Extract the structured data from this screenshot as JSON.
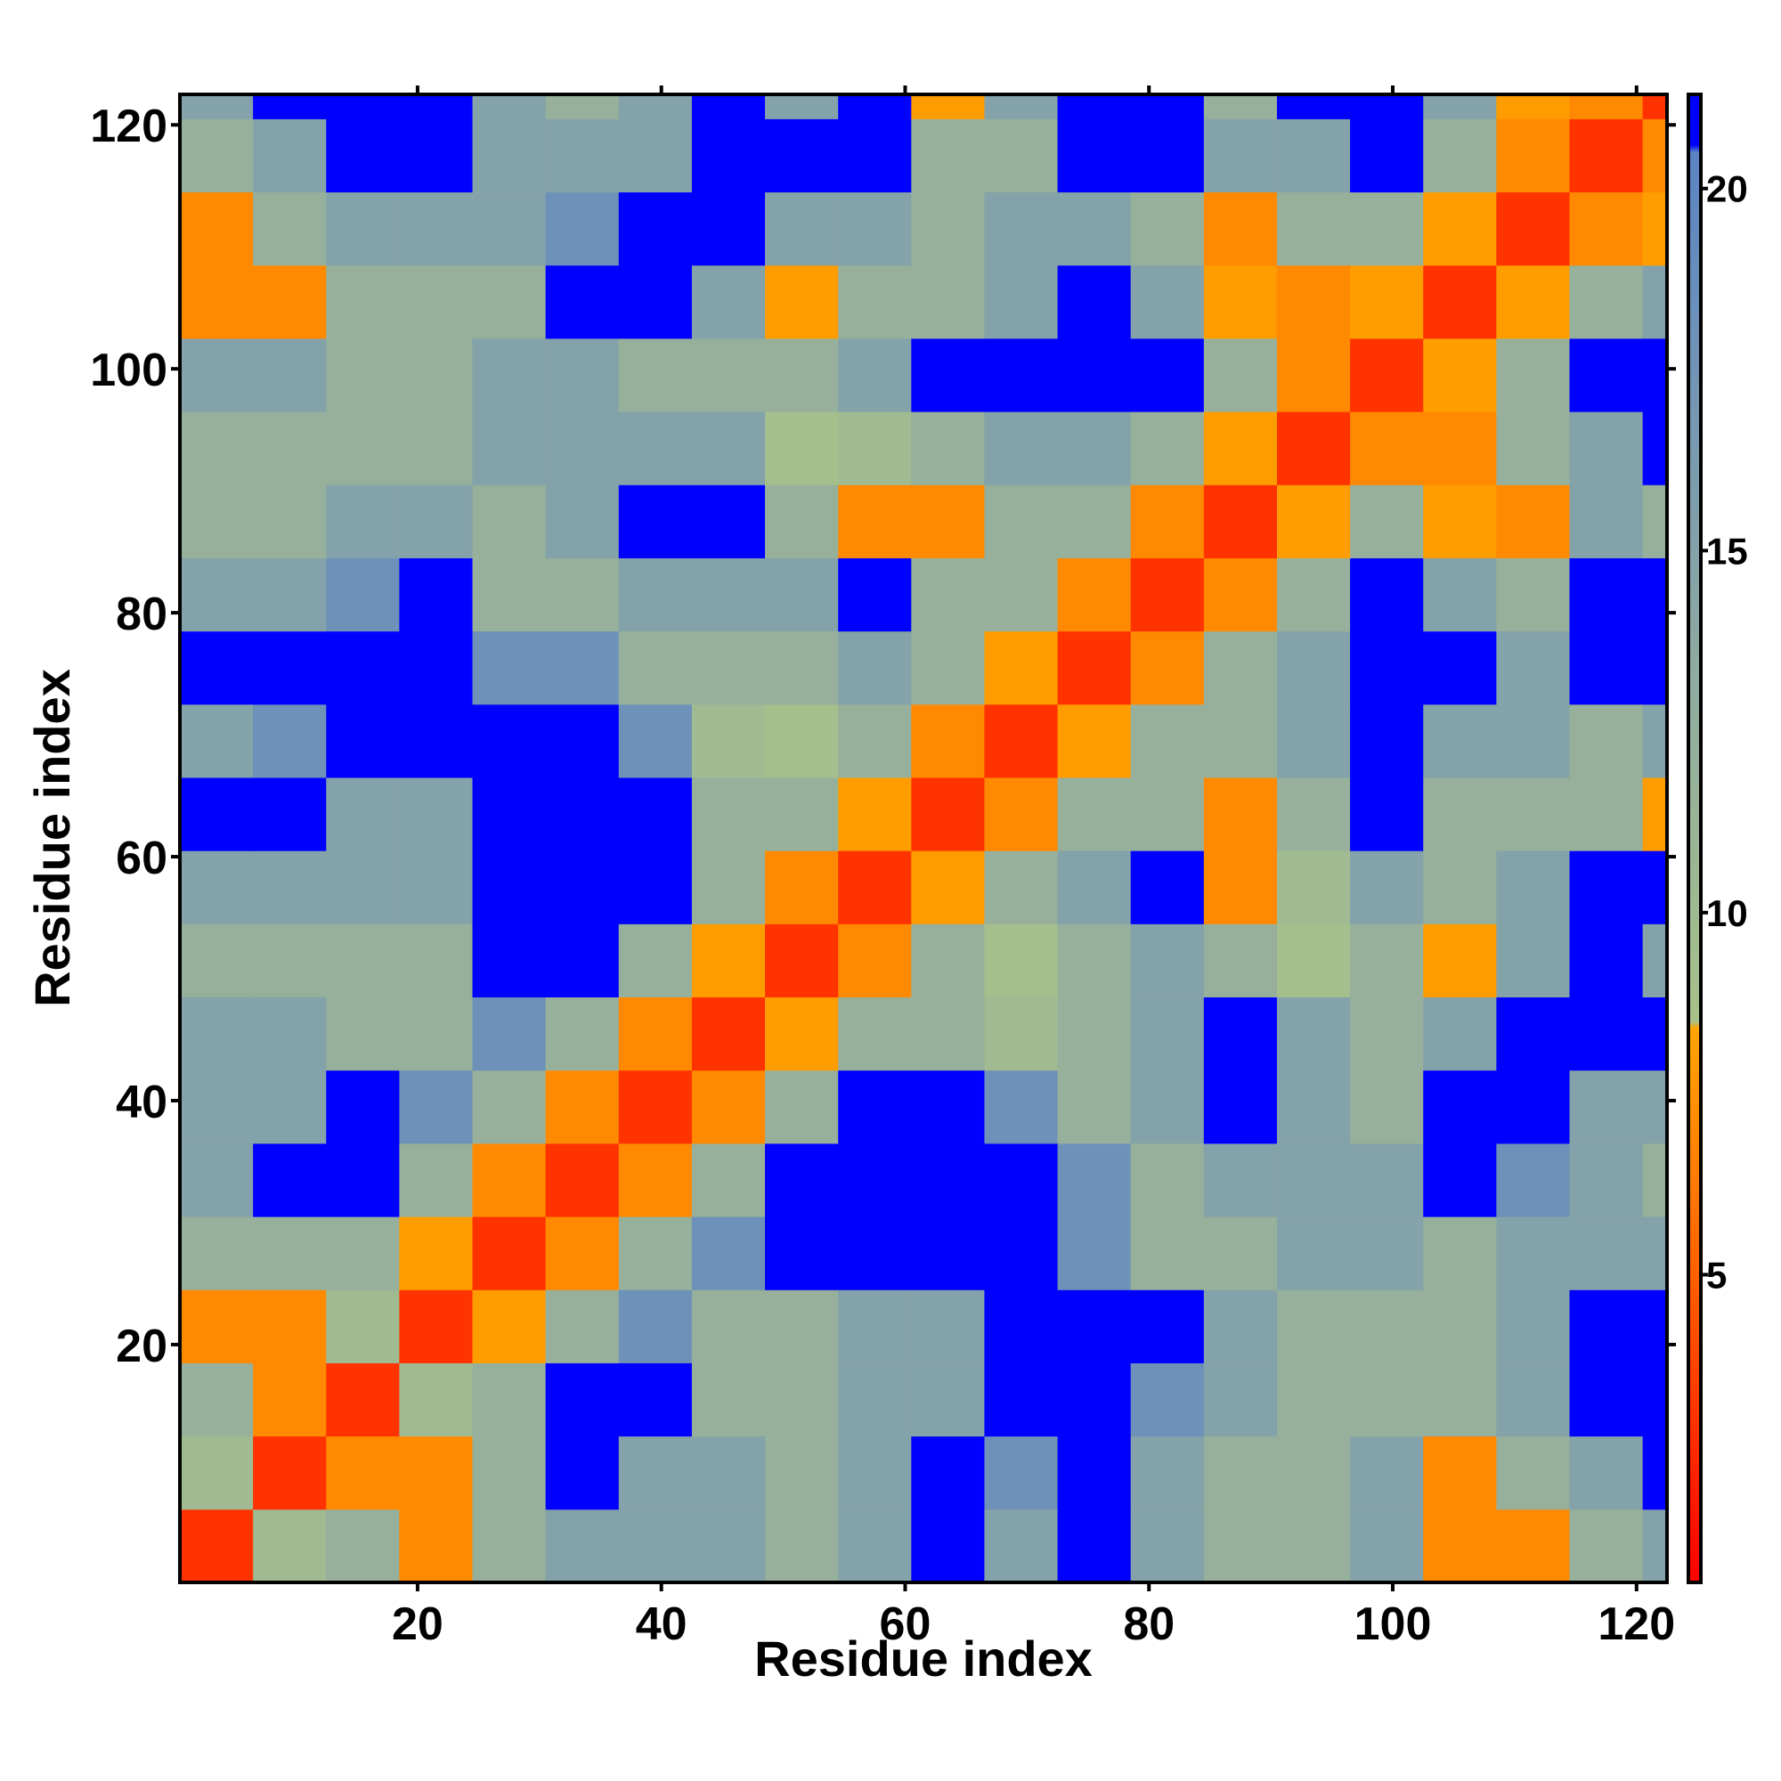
{
  "chart_data": {
    "type": "heatmap",
    "x_label": "Residue index",
    "y_label": "Residue index",
    "x_bins": [
      0.5,
      6.5,
      12.5,
      18.5,
      24.5,
      30.5,
      36.5,
      42.5,
      48.5,
      54.5,
      60.5,
      66.5,
      72.5,
      78.5,
      84.5,
      90.5,
      96.5,
      102.5,
      108.5,
      114.5,
      120.5,
      122.5
    ],
    "y_bins": [
      0.5,
      6.5,
      12.5,
      18.5,
      24.5,
      30.5,
      36.5,
      42.5,
      48.5,
      54.5,
      60.5,
      66.5,
      72.5,
      78.5,
      84.5,
      90.5,
      96.5,
      102.5,
      108.5,
      114.5,
      120.5,
      122.5
    ],
    "z": [
      [
        3,
        10,
        12,
        7,
        12,
        15,
        15,
        15,
        12,
        15,
        21,
        15,
        21,
        15,
        12,
        12,
        15,
        7,
        7,
        12,
        15
      ],
      [
        10,
        3,
        7,
        7,
        12,
        21,
        15,
        15,
        12,
        15,
        21,
        18,
        21,
        15,
        12,
        12,
        15,
        7,
        12,
        15,
        21
      ],
      [
        12,
        7,
        3,
        10,
        12,
        21,
        21,
        12,
        12,
        15,
        15,
        21,
        21,
        18,
        15,
        12,
        12,
        12,
        15,
        21,
        21
      ],
      [
        7,
        7,
        10,
        3,
        8,
        12,
        18,
        12,
        12,
        15,
        15,
        21,
        21,
        21,
        15,
        12,
        12,
        12,
        15,
        21,
        21
      ],
      [
        12,
        12,
        12,
        8,
        3,
        7,
        12,
        18,
        21,
        21,
        21,
        21,
        18,
        12,
        12,
        15,
        15,
        12,
        15,
        15,
        15
      ],
      [
        15,
        21,
        21,
        12,
        7,
        3,
        7,
        12,
        21,
        21,
        21,
        21,
        18,
        12,
        15,
        15,
        15,
        21,
        18,
        15,
        12
      ],
      [
        15,
        15,
        21,
        18,
        12,
        7,
        3,
        7,
        12,
        21,
        21,
        18,
        12,
        15,
        21,
        15,
        12,
        21,
        21,
        15,
        15
      ],
      [
        15,
        15,
        12,
        12,
        18,
        12,
        7,
        3,
        8,
        12,
        12,
        10,
        12,
        15,
        21,
        15,
        12,
        15,
        21,
        21,
        21
      ],
      [
        12,
        12,
        12,
        12,
        21,
        21,
        12,
        8,
        3,
        7,
        12,
        9,
        12,
        15,
        12,
        9,
        12,
        8,
        15,
        21,
        15
      ],
      [
        15,
        15,
        15,
        15,
        21,
        21,
        21,
        12,
        7,
        3,
        8,
        12,
        15,
        21,
        7,
        10,
        15,
        12,
        15,
        21,
        21
      ],
      [
        21,
        21,
        15,
        15,
        21,
        21,
        21,
        12,
        12,
        8,
        3,
        7,
        12,
        12,
        7,
        12,
        21,
        12,
        12,
        12,
        8
      ],
      [
        15,
        18,
        21,
        21,
        21,
        21,
        18,
        10,
        9,
        12,
        7,
        3,
        8,
        12,
        12,
        15,
        21,
        15,
        15,
        12,
        15
      ],
      [
        21,
        21,
        21,
        21,
        18,
        18,
        12,
        12,
        12,
        15,
        12,
        8,
        3,
        7,
        12,
        15,
        21,
        21,
        15,
        21,
        21
      ],
      [
        15,
        15,
        18,
        21,
        12,
        12,
        15,
        15,
        15,
        21,
        12,
        12,
        7,
        3,
        7,
        12,
        21,
        15,
        12,
        21,
        21
      ],
      [
        12,
        12,
        15,
        15,
        12,
        15,
        21,
        21,
        12,
        7,
        7,
        12,
        12,
        7,
        3,
        8,
        12,
        8,
        7,
        15,
        12
      ],
      [
        12,
        12,
        12,
        12,
        15,
        15,
        15,
        15,
        9,
        10,
        12,
        15,
        15,
        12,
        8,
        3,
        7,
        7,
        12,
        15,
        21
      ],
      [
        15,
        15,
        12,
        12,
        15,
        15,
        12,
        12,
        12,
        15,
        21,
        21,
        21,
        21,
        12,
        7,
        3,
        8,
        12,
        21,
        21
      ],
      [
        7,
        7,
        12,
        12,
        12,
        21,
        21,
        15,
        8,
        12,
        12,
        15,
        21,
        15,
        8,
        7,
        8,
        3,
        8,
        12,
        15
      ],
      [
        7,
        12,
        15,
        15,
        15,
        18,
        21,
        21,
        15,
        15,
        12,
        15,
        15,
        12,
        7,
        12,
        12,
        8,
        3,
        7,
        8
      ],
      [
        12,
        15,
        21,
        21,
        15,
        15,
        15,
        21,
        21,
        21,
        12,
        12,
        21,
        21,
        15,
        15,
        21,
        12,
        7,
        3,
        7
      ],
      [
        15,
        21,
        21,
        21,
        15,
        12,
        15,
        21,
        15,
        21,
        8,
        15,
        21,
        21,
        12,
        21,
        21,
        15,
        8,
        7,
        3
      ]
    ],
    "xlim": [
      0.5,
      122.5
    ],
    "ylim": [
      0.5,
      122.5
    ],
    "xticks": [
      20,
      40,
      60,
      80,
      100,
      120
    ],
    "yticks": [
      20,
      40,
      60,
      80,
      100,
      120
    ],
    "colorbar": {
      "lim": [
        0.75,
        21.3
      ],
      "ticks": [
        5,
        10,
        15,
        20
      ],
      "colormap": [
        {
          "value": 0.75,
          "color": "#ff0000"
        },
        {
          "value": 5,
          "color": "#ff6000"
        },
        {
          "value": 8.4,
          "color": "#ffa500"
        },
        {
          "value": 8.5,
          "color": "#a8c18a"
        },
        {
          "value": 14,
          "color": "#8ba7a4"
        },
        {
          "value": 20.5,
          "color": "#5b84c4"
        },
        {
          "value": 20.6,
          "color": "#0000ff"
        },
        {
          "value": 21.3,
          "color": "#0000ff"
        }
      ]
    }
  }
}
